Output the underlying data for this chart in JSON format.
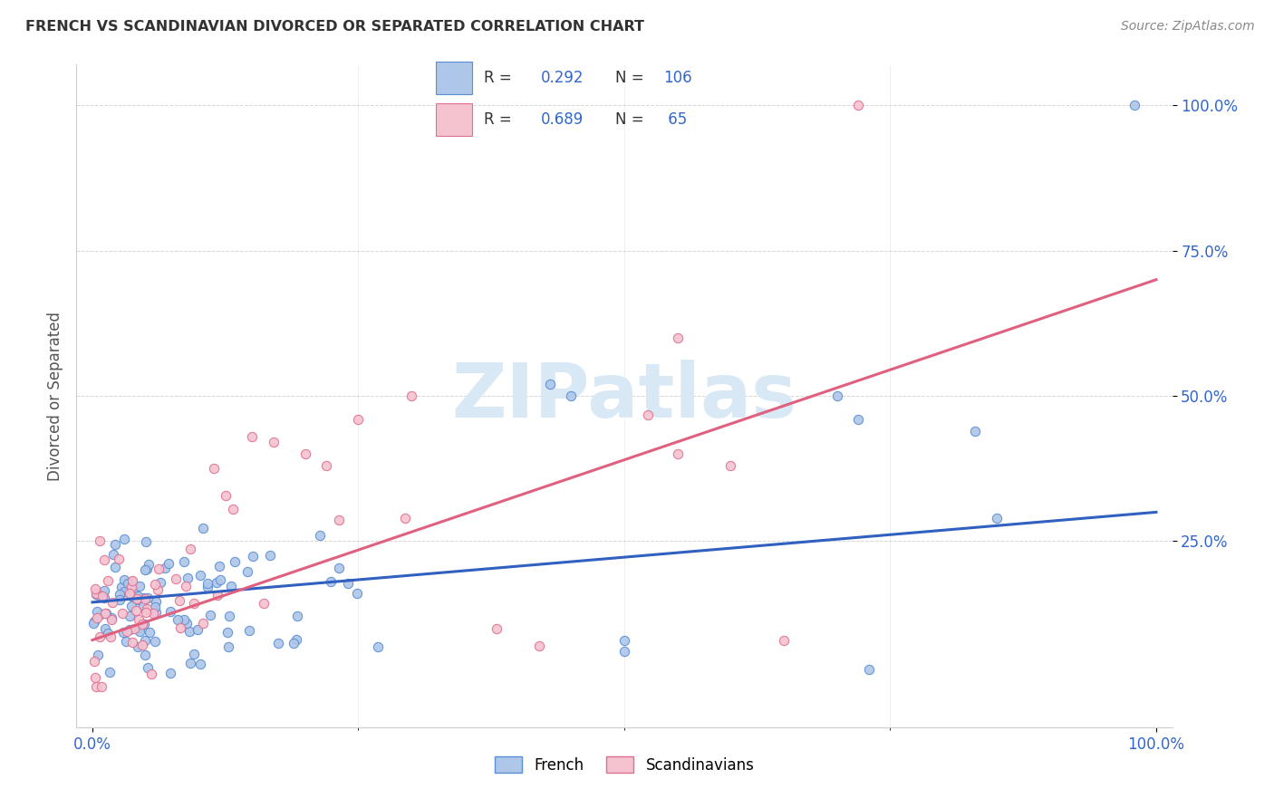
{
  "title": "FRENCH VS SCANDINAVIAN DIVORCED OR SEPARATED CORRELATION CHART",
  "source": "Source: ZipAtlas.com",
  "ylabel": "Divorced or Separated",
  "r1": "0.292",
  "n1": "106",
  "r2": "0.689",
  "n2": " 65",
  "color_french_fill": "#aec6e8",
  "color_french_edge": "#5b8fd4",
  "color_scand_fill": "#f5c2d0",
  "color_scand_edge": "#e07090",
  "color_french_line": "#3060c0",
  "color_scand_line": "#e06080",
  "color_r_text": "#3366cc",
  "color_ytick": "#3366cc",
  "color_xtick": "#3366cc",
  "watermark_color": "#d8e8f5",
  "background_color": "#ffffff",
  "grid_color": "#cccccc",
  "title_color": "#333333",
  "source_color": "#888888",
  "legend_label1": "French",
  "legend_label2": "Scandinavians"
}
